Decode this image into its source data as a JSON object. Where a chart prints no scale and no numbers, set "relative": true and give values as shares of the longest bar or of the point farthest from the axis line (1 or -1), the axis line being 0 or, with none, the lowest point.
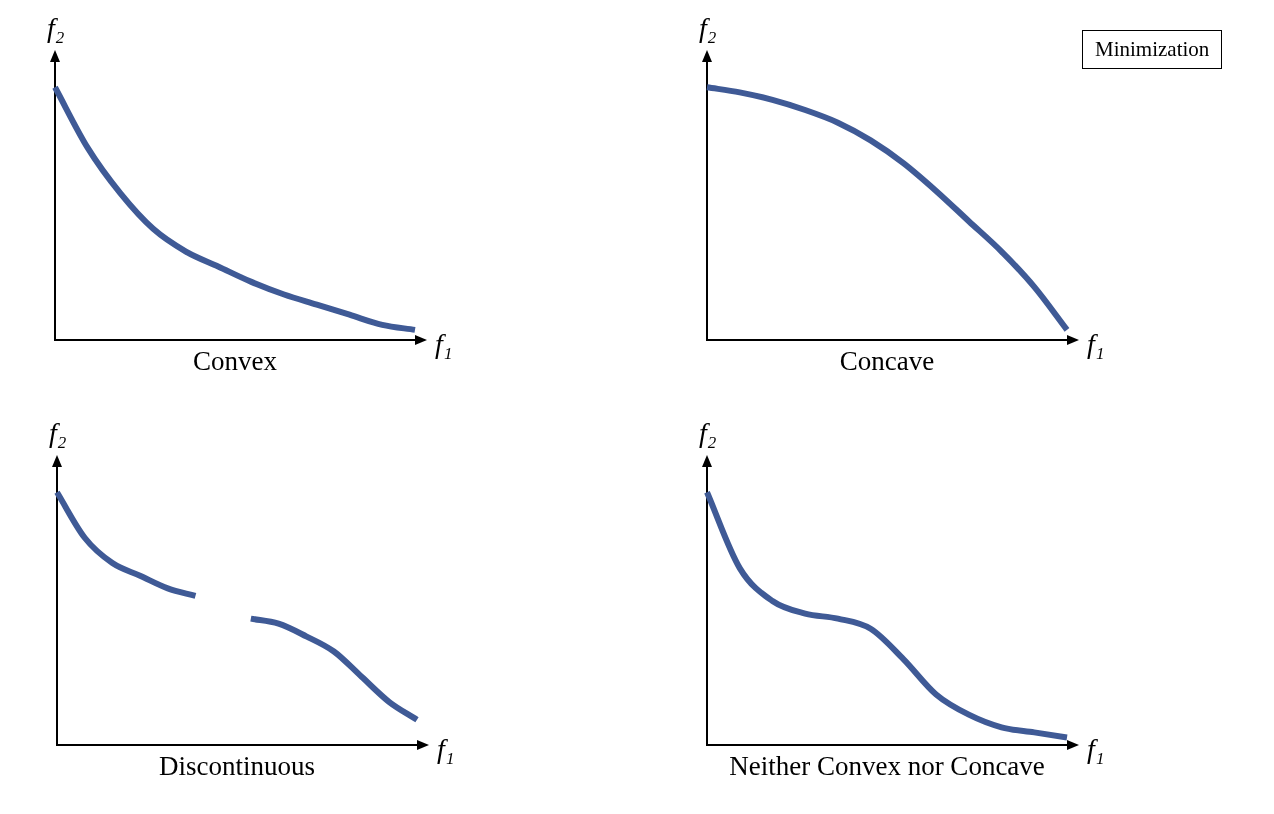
{
  "chart_data": [
    {
      "type": "line",
      "title": "Convex",
      "xlabel": "f₁",
      "ylabel": "f₂",
      "relative": true,
      "tick_labels": false,
      "categories": [
        null,
        null,
        null,
        null,
        null,
        null,
        null,
        null,
        null,
        null,
        null,
        null
      ],
      "series": [
        {
          "color": "#3f5a96",
          "values": [
            1,
            0.76,
            0.58,
            0.44,
            0.35,
            0.29,
            0.23,
            0.18,
            0.14,
            0.1,
            0.06,
            0.04
          ]
        }
      ]
    },
    {
      "type": "line",
      "title": "Concave",
      "xlabel": "f₁",
      "ylabel": "f₂",
      "relative": true,
      "tick_labels": false,
      "annotations": [
        "Minimization"
      ],
      "categories": [
        null,
        null,
        null,
        null,
        null,
        null,
        null,
        null,
        null,
        null,
        null,
        null
      ],
      "series": [
        {
          "color": "#3f5a96",
          "values": [
            1,
            0.98,
            0.95,
            0.91,
            0.86,
            0.79,
            0.7,
            0.59,
            0.47,
            0.35,
            0.21,
            0.04
          ]
        }
      ]
    },
    {
      "type": "line",
      "title": "Discontinuous",
      "xlabel": "f₁",
      "ylabel": "f₂",
      "relative": true,
      "tick_labels": false,
      "categories": [
        null,
        null,
        null,
        null,
        null,
        null,
        null,
        null,
        null,
        null,
        null,
        null,
        null,
        null
      ],
      "series": [
        {
          "color": "#3f5a96",
          "values": [
            1,
            0.82,
            0.72,
            0.67,
            0.62,
            0.59,
            null,
            null,
            null,
            null,
            null,
            null,
            null,
            null
          ]
        },
        {
          "color": "#3f5a96",
          "values": [
            null,
            null,
            null,
            null,
            null,
            null,
            null,
            0.5,
            0.48,
            0.43,
            0.37,
            0.27,
            0.17,
            0.1
          ]
        }
      ]
    },
    {
      "type": "line",
      "title": "Neither Convex nor Concave",
      "xlabel": "f₁",
      "ylabel": "f₂",
      "relative": true,
      "tick_labels": false,
      "categories": [
        null,
        null,
        null,
        null,
        null,
        null,
        null,
        null,
        null,
        null,
        null,
        null
      ],
      "series": [
        {
          "color": "#3f5a96",
          "values": [
            1,
            0.7,
            0.57,
            0.52,
            0.5,
            0.46,
            0.34,
            0.2,
            0.12,
            0.07,
            0.05,
            0.03
          ]
        }
      ]
    }
  ]
}
